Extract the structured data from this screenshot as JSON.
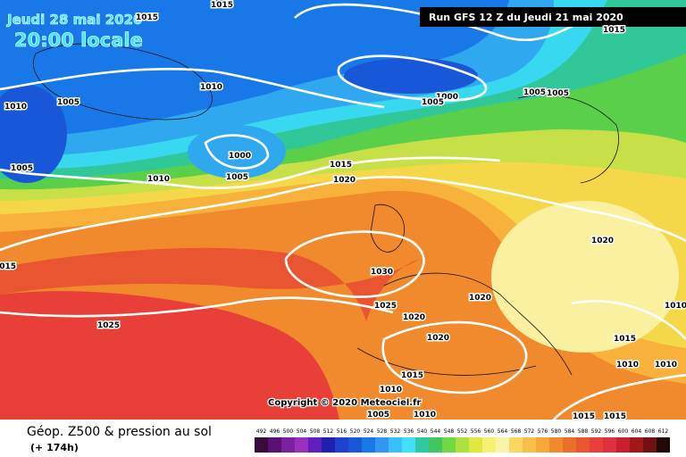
{
  "header": {
    "date": "Jeudi 28 mai 2020",
    "time": "20:00 locale",
    "run": "Run GFS 12 Z du Jeudi 21 mai 2020"
  },
  "copyright": "Copyright © 2020 Meteociel.fr",
  "legend": {
    "title": "Géop. Z500 & pression au sol",
    "lead": "(+ 174h)",
    "scale": [
      492,
      496,
      500,
      504,
      508,
      512,
      516,
      520,
      524,
      528,
      532,
      536,
      540,
      544,
      548,
      552,
      556,
      560,
      564,
      568,
      572,
      576,
      580,
      584,
      588,
      592,
      596,
      600,
      604,
      608,
      612
    ],
    "colors": [
      "#3a0a3a",
      "#5a1070",
      "#7a20a0",
      "#9a30c0",
      "#6020c0",
      "#2020b0",
      "#2040d0",
      "#1858d8",
      "#1878e8",
      "#3098f0",
      "#38c0f8",
      "#40e0f8",
      "#30c8a0",
      "#40c860",
      "#70d840",
      "#b0e040",
      "#e0e840",
      "#f8f070",
      "#fbf4a8",
      "#f8d860",
      "#f8c048",
      "#f8a838",
      "#f08a2c",
      "#e87028",
      "#e85530",
      "#e84038",
      "#e03040",
      "#c82030",
      "#a01818",
      "#701010",
      "#200808"
    ]
  },
  "isobar_labels": [
    1015,
    1015,
    1015,
    1010,
    1010,
    1005,
    1000,
    1005,
    1005,
    1005,
    1000,
    1005,
    1010,
    1005,
    1015,
    1020,
    1020,
    1030,
    1025,
    1020,
    1020,
    1020,
    1025,
    1015,
    1015,
    1010,
    1005,
    1010,
    1015,
    1015,
    1015,
    1010,
    1010,
    1010
  ]
}
